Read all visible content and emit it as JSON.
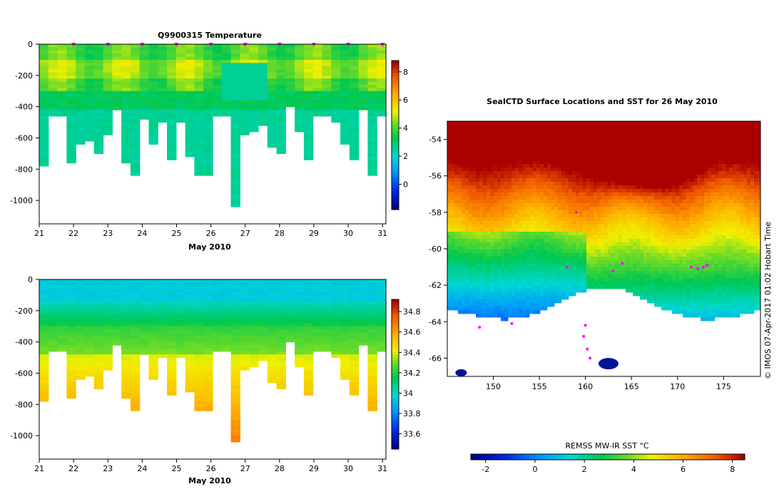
{
  "chart_data": [
    {
      "type": "heatmap",
      "title": "Q9900315  Temperature",
      "xlabel": "May 2010",
      "ylabel": "",
      "x_ticks": [
        "21",
        "22",
        "23",
        "24",
        "25",
        "26",
        "27",
        "28",
        "29",
        "30",
        "31"
      ],
      "y_ticks": [
        "0",
        "-200",
        "-400",
        "-600",
        "-800",
        "-1000"
      ],
      "xlim": [
        21,
        31.1
      ],
      "ylim": [
        -1150,
        0
      ],
      "profile_max_depths": [
        780,
        450,
        460,
        750,
        630,
        620,
        690,
        570,
        420,
        750,
        830,
        480,
        640,
        500,
        730,
        490,
        720,
        840,
        840,
        450,
        450,
        1040,
        580,
        550,
        510,
        650,
        700,
        400,
        560,
        730,
        460,
        460,
        500,
        630,
        730,
        420,
        840,
        460
      ],
      "cast_markers_day": [
        22,
        23,
        24,
        25,
        26,
        27,
        28,
        29,
        30,
        31
      ],
      "colorbar": {
        "label": "",
        "ticks": [
          "0",
          "2",
          "4",
          "6",
          "8"
        ],
        "range": [
          -1.8,
          8.8
        ]
      }
    },
    {
      "type": "heatmap",
      "title": "",
      "xlabel": "May 2010",
      "ylabel": "",
      "x_ticks": [
        "21",
        "22",
        "23",
        "24",
        "25",
        "26",
        "27",
        "28",
        "29",
        "30",
        "31"
      ],
      "y_ticks": [
        "0",
        "-200",
        "-400",
        "-600",
        "-800",
        "-1000"
      ],
      "xlim": [
        21,
        31.1
      ],
      "ylim": [
        -1150,
        0
      ],
      "profile_max_depths": [
        780,
        450,
        460,
        750,
        630,
        620,
        690,
        570,
        420,
        750,
        830,
        480,
        640,
        500,
        730,
        490,
        720,
        840,
        840,
        450,
        450,
        1040,
        580,
        550,
        510,
        650,
        700,
        400,
        560,
        730,
        460,
        460,
        500,
        630,
        730,
        420,
        840,
        460
      ],
      "colorbar": {
        "label": "",
        "ticks": [
          "33.6",
          "33.8",
          "34",
          "34.2",
          "34.4",
          "34.6",
          "34.8"
        ],
        "range": [
          33.45,
          34.92
        ]
      }
    },
    {
      "type": "heatmap",
      "title": "SealCTD Surface Locations and SST for 26 May 2010",
      "xlabel": "",
      "ylabel": "",
      "x_ticks": [
        "150",
        "155",
        "160",
        "165",
        "170",
        "175"
      ],
      "y_ticks": [
        "-54",
        "-56",
        "-58",
        "-60",
        "-62",
        "-64",
        "-66"
      ],
      "xlim": [
        145,
        179
      ],
      "ylim": [
        -67,
        -53
      ],
      "colorbar": {
        "label": "REMSS MW-IR SST °C",
        "ticks": [
          "-2",
          "0",
          "2",
          "4",
          "6",
          "8"
        ],
        "range": [
          -2.6,
          8.5
        ]
      }
    }
  ],
  "credit": "© IMOS 07-Apr-2017 01:02 Hobart Time",
  "colors": {
    "axis": "#000000",
    "marker": "#ff00ff",
    "land": "#ffffff"
  }
}
